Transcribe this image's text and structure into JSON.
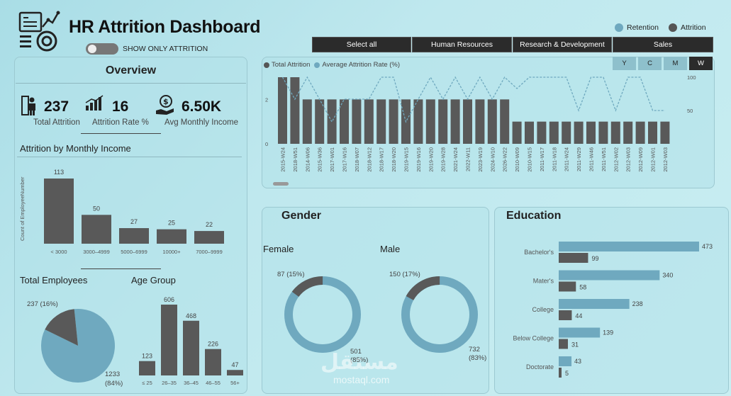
{
  "header": {
    "title": "HR Attrition Dashboard",
    "toggle_label": "SHOW ONLY ATTRITION",
    "legend": [
      {
        "label": "Retention",
        "color": "#6fa9bf"
      },
      {
        "label": "Attrition",
        "color": "#555555"
      }
    ],
    "departments": [
      "Select all",
      "Human Resources",
      "Research & Development",
      "Sales"
    ]
  },
  "overview": {
    "title": "Overview",
    "kpis": [
      {
        "value": "237",
        "label": "Total Attrition",
        "icon": "people-icon"
      },
      {
        "value": "16",
        "label": "Attrition Rate %",
        "icon": "bar-chart-icon"
      },
      {
        "value": "6.50K",
        "label": "Avg Monthly Income",
        "icon": "money-hand-icon"
      }
    ]
  },
  "income_chart": {
    "title": "Attrition by Monthly Income",
    "ylabel": "Count of EmployeeNumber",
    "categories": [
      "< 3000",
      "3000–4999",
      "5000–6999",
      "10000+",
      "7000–9999"
    ],
    "values": [
      113,
      50,
      27,
      25,
      22
    ]
  },
  "total_employees": {
    "title": "Total Employees",
    "attrition_label": "237 (16%)",
    "retention_label": "1233",
    "retention_pct": "(84%)",
    "values": [
      237,
      1233
    ]
  },
  "age_group": {
    "title": "Age Group",
    "categories": [
      "≤ 25",
      "26–35",
      "36–45",
      "46–55",
      "56+"
    ],
    "values": [
      123,
      606,
      468,
      226,
      47
    ]
  },
  "timeline": {
    "legend": [
      "Total Attrition",
      "Average Attrition Rate (%)"
    ],
    "buttons": [
      "Y",
      "C",
      "M",
      "W"
    ],
    "y_ticks": [
      "0",
      "2"
    ],
    "y2_ticks": [
      "50",
      "100"
    ],
    "categories": [
      "2015-W24",
      "2018-W51",
      "2014-W06",
      "2015-W36",
      "2017-W01",
      "2017-W16",
      "2018-W07",
      "2018-W12",
      "2018-W17",
      "2018-W20",
      "2019-W15",
      "2019-W16",
      "2019-W20",
      "2019-W28",
      "2021-W24",
      "2022-W11",
      "2023-W19",
      "2024-W10",
      "2026-W22",
      "2010-W09",
      "2010-W15",
      "2011-W17",
      "2011-W18",
      "2011-W24",
      "2011-W29",
      "2011-W46",
      "2011-W51",
      "2012-W02",
      "2012-W03",
      "2012-W09",
      "2012-W01",
      "2012-W03"
    ],
    "total_attrition": [
      3,
      3,
      2,
      2,
      2,
      2,
      2,
      2,
      2,
      2,
      2,
      2,
      2,
      2,
      2,
      2,
      2,
      2,
      2,
      1,
      1,
      1,
      1,
      1,
      1,
      1,
      1,
      1,
      1,
      1,
      1,
      1
    ],
    "avg_rate": [
      100,
      67,
      100,
      67,
      33,
      67,
      67,
      67,
      100,
      100,
      33,
      67,
      100,
      67,
      100,
      67,
      100,
      67,
      100,
      83,
      100,
      100,
      100,
      100,
      50,
      100,
      100,
      50,
      100,
      100,
      50,
      50
    ]
  },
  "gender": {
    "title": "Gender",
    "charts": [
      {
        "label": "Female",
        "attrition_label": "87 (15%)",
        "retention_label": "501",
        "retention_pct": "(85%)",
        "values": [
          87,
          501
        ]
      },
      {
        "label": "Male",
        "attrition_label": "150 (17%)",
        "retention_label": "732",
        "retention_pct": "(83%)",
        "values": [
          150,
          732
        ]
      }
    ]
  },
  "education": {
    "title": "Education",
    "categories": [
      "Bachelor's",
      "Mater's",
      "College",
      "Below College",
      "Doctorate"
    ],
    "retention": [
      473,
      340,
      238,
      139,
      43
    ],
    "attrition": [
      99,
      58,
      44,
      31,
      5
    ]
  },
  "colors": {
    "retention": "#6fa9bf",
    "attrition": "#595959"
  },
  "watermark": "mostaql.com"
}
